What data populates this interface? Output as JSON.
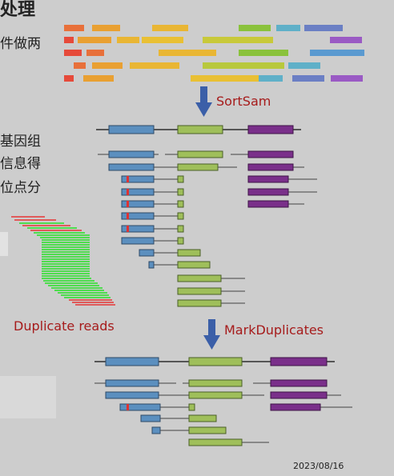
{
  "left_text": {
    "title_fragment": "处理",
    "line1": "件做两",
    "line2": "基因组",
    "line3": "信息得",
    "line4": "位点分"
  },
  "labels": {
    "sortsam": "SortSam",
    "markdup": "MarkDuplicates",
    "dup_reads": "Duplicate reads",
    "date": "2023/08/16"
  },
  "colors": {
    "background": "#cdcdcd",
    "arrow_blue": "#3b5fa8",
    "label_red": "#a61b1b",
    "exon_blue": "#5b8fbf",
    "exon_green": "#9fbf5a",
    "exon_purple": "#7a2f8a"
  }
}
